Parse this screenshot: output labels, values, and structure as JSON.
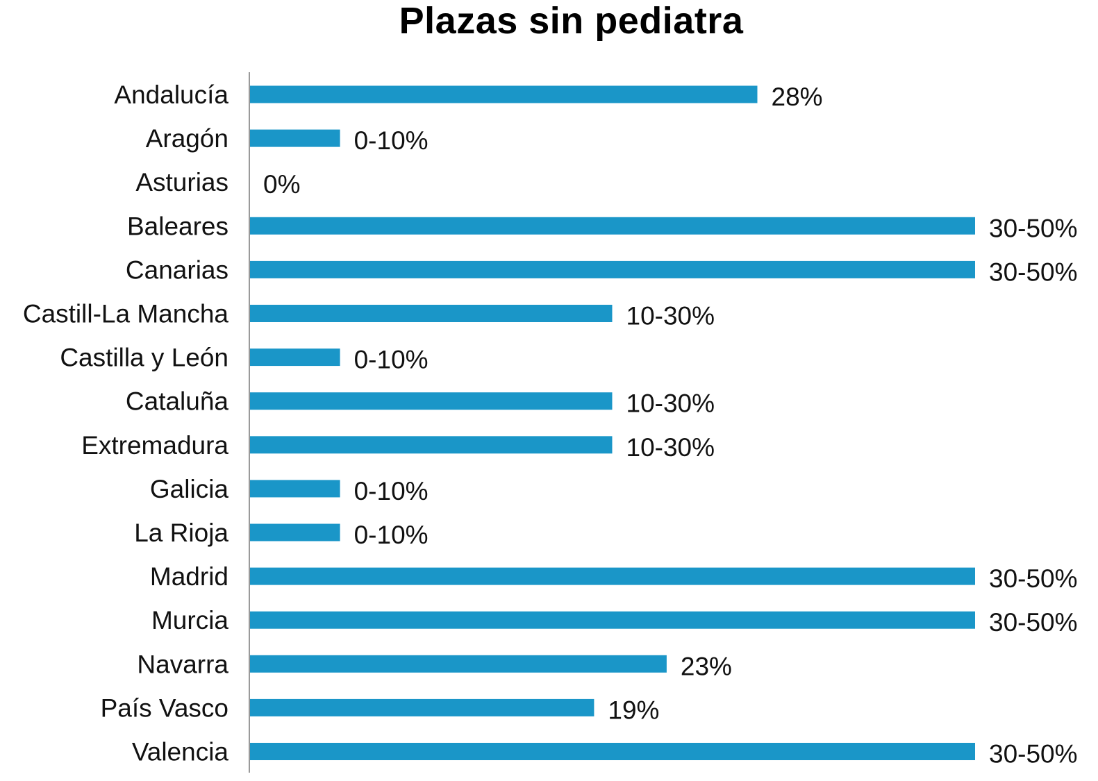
{
  "chart_data": {
    "type": "bar",
    "orientation": "horizontal",
    "title": "Plazas sin pediatra",
    "xlabel": "",
    "ylabel": "",
    "grid": false,
    "legend": "none",
    "bar_color": "#1a96c8",
    "axis_color": "#9a9a9a",
    "xlim": [
      0,
      40
    ],
    "categories": [
      "Andalucía",
      "Aragón",
      "Asturias",
      "Baleares",
      "Canarias",
      "Castill-La Mancha",
      "Castilla y León",
      "Cataluña",
      "Extremadura",
      "Galicia",
      "La Rioja",
      "Madrid",
      "Murcia",
      "Navarra",
      "País Vasco",
      "Valencia"
    ],
    "values": [
      28,
      5,
      0,
      40,
      40,
      20,
      5,
      20,
      20,
      5,
      5,
      40,
      40,
      23,
      19,
      40
    ],
    "data_labels": [
      "28%",
      "0-10%",
      "0%",
      "30-50%",
      "30-50%",
      "10-30%",
      "0-10%",
      "10-30%",
      "10-30%",
      "0-10%",
      "0-10%",
      "30-50%",
      "30-50%",
      "23%",
      "19%",
      "30-50%"
    ]
  }
}
